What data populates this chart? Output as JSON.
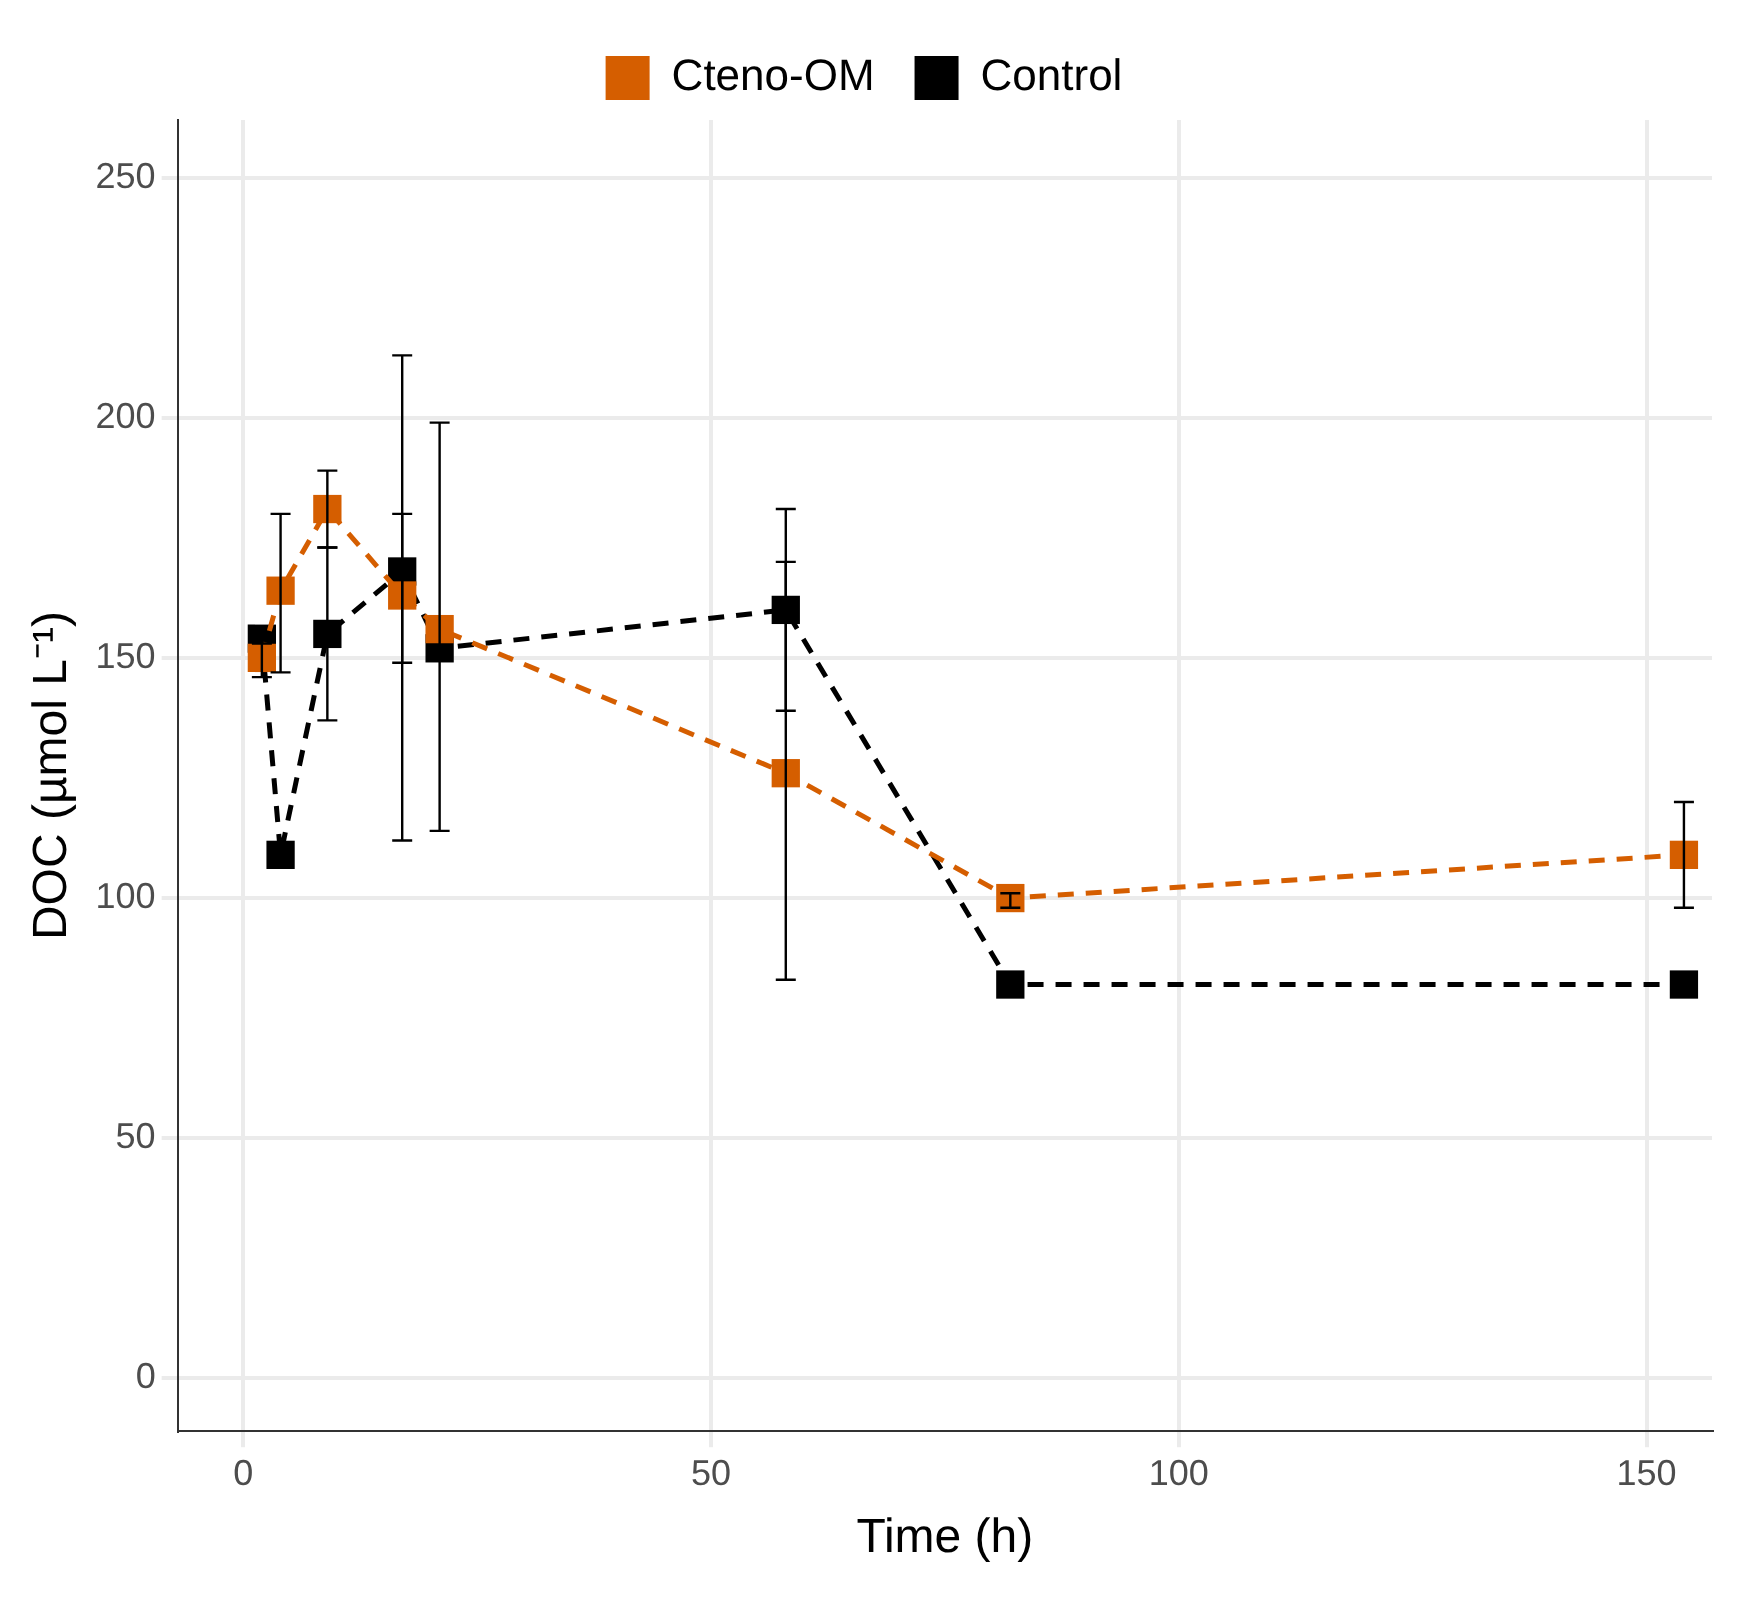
{
  "chart_data": {
    "type": "line",
    "xlabel": "Time (h)",
    "ylabel": "DOC (µmol L⁻¹)",
    "xlim": [
      -7,
      157
    ],
    "xticks": [
      0,
      50,
      100,
      150
    ],
    "ylim": [
      -11,
      262
    ],
    "yticks": [
      0,
      50,
      100,
      150,
      200,
      250
    ],
    "grid": true,
    "legend": "top",
    "marker": "square",
    "line_style": "dashed",
    "series": [
      {
        "name": "Cteno-OM",
        "color": "#d55e00",
        "x": [
          2,
          4,
          9,
          17,
          21,
          58,
          82,
          154
        ],
        "values": [
          150,
          164,
          181,
          163,
          156,
          126,
          100,
          109
        ],
        "errors": [
          [
            146,
            153
          ],
          [
            147,
            180
          ],
          [
            173,
            189
          ],
          [
            149,
            180
          ],
          null,
          [
            83,
            170
          ],
          [
            98,
            101
          ],
          [
            98,
            120
          ]
        ]
      },
      {
        "name": "Control",
        "color": "#000000",
        "x": [
          2,
          4,
          9,
          17,
          21,
          58,
          82,
          154
        ],
        "values": [
          154,
          109,
          155,
          168,
          152,
          160,
          82,
          82
        ],
        "errors": [
          null,
          [
            107,
            110
          ],
          [
            137,
            173
          ],
          [
            112,
            213
          ],
          [
            114,
            199
          ],
          [
            139,
            181
          ],
          null,
          null
        ]
      }
    ]
  }
}
